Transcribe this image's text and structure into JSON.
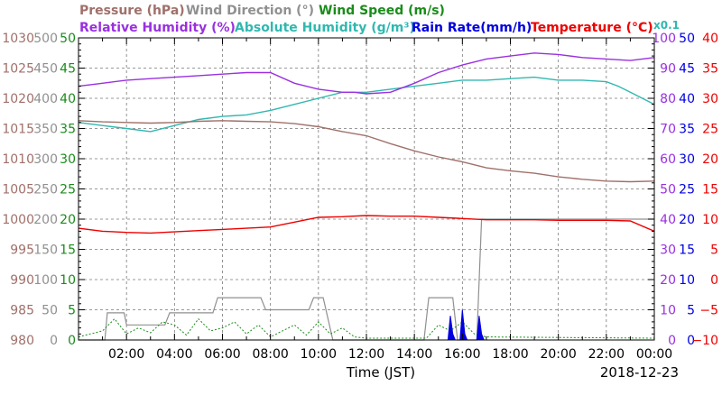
{
  "legend": {
    "pressure": "Pressure (hPa)",
    "wind_direction": "Wind Direction (°)",
    "wind_speed": "Wind Speed (m/s)",
    "relative_humidity": "Relative Humidity (%)",
    "absolute_humidity": "Absolute Humidity (g/m³)",
    "rain_rate": "Rain Rate(mm/h)",
    "temperature": "Temperature (°C)",
    "abs_hum_scale": "x0.1"
  },
  "colors": {
    "pressure": "#a0706a",
    "wind_direction": "#909090",
    "wind_speed": "#1a8c1a",
    "relative_humidity": "#9a30e0",
    "absolute_humidity": "#30b8b0",
    "rain_rate": "#0000e0",
    "temperature": "#ee0000"
  },
  "chart_data": {
    "type": "line",
    "xlabel": "Time (JST)",
    "date": "2018-12-23",
    "x_ticks": [
      "02:00",
      "04:00",
      "06:00",
      "08:00",
      "10:00",
      "12:00",
      "14:00",
      "16:00",
      "18:00",
      "20:00",
      "22:00",
      "00:00"
    ],
    "xlim": [
      0,
      24
    ],
    "grid": true,
    "axes": {
      "pressure": {
        "range": [
          980,
          1030
        ],
        "ticks": [
          "980",
          "985",
          "990",
          "995",
          "1000",
          "1005",
          "1010",
          "1015",
          "1020",
          "1025",
          "1030"
        ]
      },
      "wind_direction": {
        "range": [
          0,
          500
        ],
        "ticks": [
          "0",
          "50",
          "100",
          "150",
          "200",
          "250",
          "300",
          "350",
          "400",
          "450",
          "500"
        ]
      },
      "wind_speed": {
        "range": [
          0,
          50
        ],
        "ticks": [
          "0",
          "5",
          "10",
          "15",
          "20",
          "25",
          "30",
          "35",
          "40",
          "45",
          "50"
        ]
      },
      "relative_humidity": {
        "range": [
          0,
          100
        ],
        "ticks": [
          "0",
          "10",
          "20",
          "30",
          "40",
          "50",
          "60",
          "70",
          "80",
          "90",
          "100"
        ]
      },
      "rain_rate": {
        "range": [
          0,
          50
        ],
        "ticks": [
          "0",
          "5",
          "10",
          "15",
          "20",
          "25",
          "30",
          "35",
          "40",
          "45",
          "50"
        ]
      },
      "temperature": {
        "range": [
          -10,
          40
        ],
        "ticks": [
          "−10",
          "−5",
          "0",
          "5",
          "10",
          "15",
          "20",
          "25",
          "30",
          "35",
          "40"
        ]
      }
    },
    "series": [
      {
        "name": "Pressure (hPa)",
        "key": "pressure",
        "axis": "pressure",
        "x": [
          0,
          1,
          2,
          3,
          4,
          5,
          6,
          7,
          8,
          9,
          10,
          11,
          12,
          13,
          14,
          15,
          16,
          17,
          18,
          19,
          20,
          21,
          22,
          23,
          24
        ],
        "y": [
          1016.3,
          1016.1,
          1016.0,
          1015.9,
          1016.0,
          1016.2,
          1016.3,
          1016.2,
          1016.1,
          1015.8,
          1015.3,
          1014.5,
          1013.8,
          1012.5,
          1011.3,
          1010.3,
          1009.5,
          1008.5,
          1008.0,
          1007.6,
          1007.0,
          1006.6,
          1006.3,
          1006.2,
          1006.3
        ]
      },
      {
        "name": "Wind Direction (°)",
        "key": "wind_direction",
        "axis": "wind_direction",
        "x": [
          0,
          1.1,
          1.2,
          1.9,
          2.0,
          3.6,
          3.8,
          5.6,
          5.8,
          7.6,
          7.8,
          9.6,
          9.8,
          10.2,
          10.6,
          10.8,
          14.4,
          14.6,
          15.6,
          15.8,
          16.6,
          16.8,
          24
        ],
        "y": [
          0,
          0,
          45,
          45,
          25,
          25,
          45,
          45,
          70,
          70,
          50,
          50,
          70,
          70,
          0,
          0,
          0,
          70,
          70,
          0,
          0,
          200,
          200
        ]
      },
      {
        "name": "Wind Speed (m/s)",
        "key": "wind_speed",
        "axis": "wind_speed",
        "x": [
          0,
          1,
          1.5,
          2,
          2.5,
          3,
          3.5,
          4,
          4.5,
          5,
          5.5,
          6,
          6.5,
          7,
          7.5,
          8,
          8.5,
          9,
          9.5,
          10,
          10.5,
          11,
          11.5,
          12,
          14.5,
          15,
          15.5,
          16,
          16.5,
          17,
          24
        ],
        "y": [
          0.5,
          1.5,
          3.5,
          1.0,
          2.0,
          1.2,
          3.0,
          2.5,
          0.8,
          3.5,
          1.5,
          2.0,
          3.0,
          1.0,
          2.5,
          0.5,
          1.5,
          2.5,
          0.8,
          3.0,
          1.0,
          2.0,
          0.5,
          0.3,
          0.3,
          2.5,
          1.5,
          3.0,
          1.0,
          0.5,
          0.3
        ]
      },
      {
        "name": "Relative Humidity (%)",
        "key": "relative_humidity",
        "axis": "relative_humidity",
        "x": [
          0,
          1,
          2,
          3,
          4,
          5,
          6,
          7,
          8,
          9,
          10,
          11,
          11.5,
          12,
          13,
          14,
          15,
          16,
          17,
          18,
          19,
          20,
          21,
          22,
          23,
          24
        ],
        "y": [
          84,
          85,
          86,
          86.5,
          87,
          87.5,
          88,
          88.5,
          88.5,
          85,
          83,
          82,
          82,
          81.5,
          82,
          85,
          88.5,
          91,
          93,
          94,
          95,
          94.5,
          93.5,
          93,
          92.5,
          93.5
        ]
      },
      {
        "name": "Absolute Humidity (g/m³)",
        "key": "absolute_humidity",
        "axis": "relative_humidity",
        "x": [
          0,
          1,
          2,
          3,
          4,
          5,
          6,
          7,
          8,
          9,
          10,
          11,
          12,
          13,
          14,
          15,
          16,
          17,
          18,
          19,
          20,
          21,
          22,
          22.5,
          23,
          23.5,
          24
        ],
        "y": [
          72,
          71,
          70,
          69,
          71,
          73,
          74,
          74.5,
          76,
          78,
          80,
          82,
          82,
          83,
          84,
          85,
          86,
          86,
          86.5,
          87,
          86,
          86,
          85.5,
          84,
          82,
          80,
          78
        ]
      },
      {
        "name": "Rain Rate(mm/h)",
        "key": "rain_rate",
        "axis": "rain_rate",
        "x": [
          0,
          15.4,
          15.5,
          15.6,
          15.7,
          15.9,
          16.0,
          16.1,
          16.2,
          16.6,
          16.7,
          16.8,
          16.9,
          24
        ],
        "y": [
          0,
          0,
          4,
          1,
          0,
          0,
          5,
          1,
          0,
          0,
          4,
          1,
          0,
          0
        ]
      },
      {
        "name": "Temperature (°C)",
        "key": "temperature",
        "axis": "temperature",
        "x": [
          0,
          1,
          2,
          3,
          4,
          5,
          6,
          7,
          8,
          9,
          10,
          11,
          12,
          13,
          14,
          15,
          16,
          17,
          18,
          19,
          20,
          21,
          22,
          23,
          24
        ],
        "y": [
          8.5,
          8.0,
          7.8,
          7.7,
          7.9,
          8.1,
          8.3,
          8.5,
          8.7,
          9.5,
          10.3,
          10.4,
          10.6,
          10.5,
          10.5,
          10.3,
          10.1,
          9.9,
          9.9,
          9.9,
          9.8,
          9.8,
          9.8,
          9.7,
          8.0
        ]
      }
    ]
  }
}
